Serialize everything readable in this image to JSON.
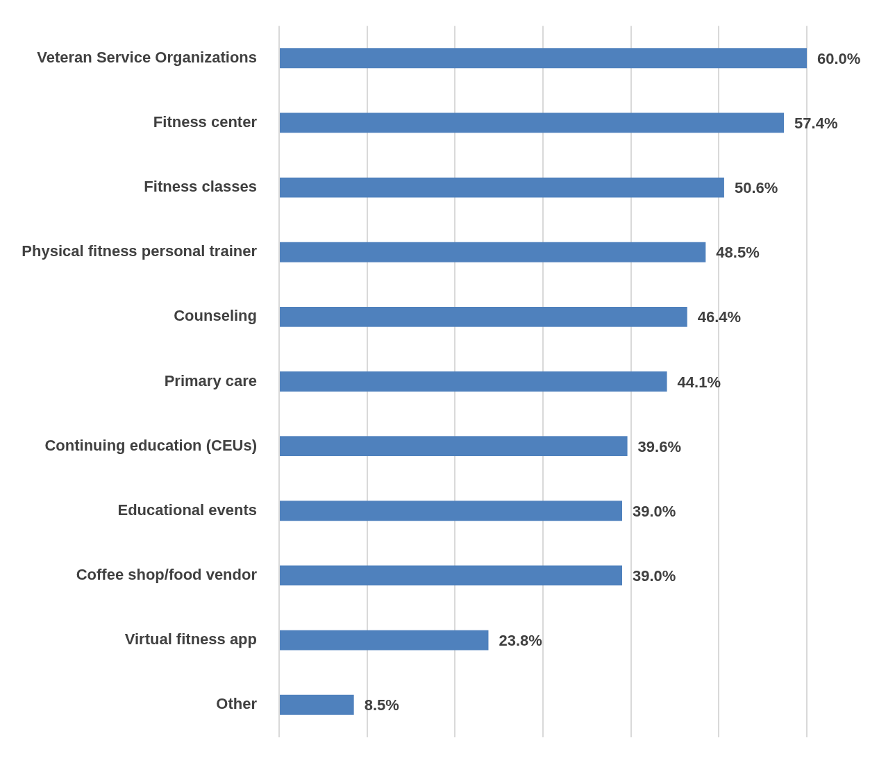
{
  "chart_data": {
    "type": "bar",
    "orientation": "horizontal",
    "categories": [
      "Veteran Service Organizations",
      "Fitness center",
      "Fitness classes",
      "Physical fitness personal trainer",
      "Counseling",
      "Primary care",
      "Continuing education (CEUs)",
      "Educational events",
      "Coffee shop/food vendor",
      "Virtual fitness app",
      "Other"
    ],
    "values": [
      60.0,
      57.4,
      50.6,
      48.5,
      46.4,
      44.1,
      39.6,
      39.0,
      39.0,
      23.8,
      8.5
    ],
    "value_labels": [
      "60.0%",
      "57.4%",
      "50.6%",
      "48.5%",
      "46.4%",
      "44.1%",
      "39.6%",
      "39.0%",
      "39.0%",
      "23.8%",
      "8.5%"
    ],
    "color": "#4f81bd",
    "xlim": [
      0,
      60
    ],
    "xticks": [
      {
        "value": 0,
        "label": null
      },
      {
        "value": 10,
        "label": null
      },
      {
        "value": 20,
        "label": null
      },
      {
        "value": 30,
        "label": null
      },
      {
        "value": 40,
        "label": null
      },
      {
        "value": 50,
        "label": null
      },
      {
        "value": 60,
        "label": null
      }
    ],
    "grid": "x",
    "tick_labels": "y"
  }
}
